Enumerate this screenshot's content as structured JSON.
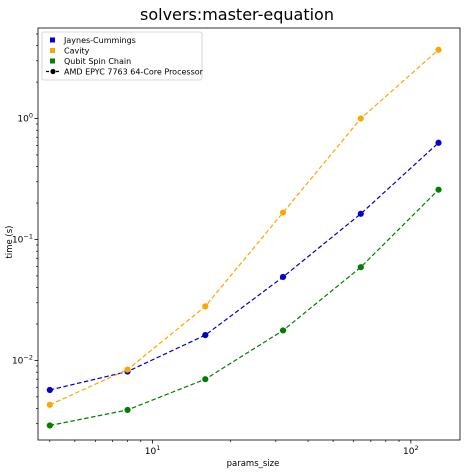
{
  "chart_data": {
    "type": "line",
    "title": "solvers:master-equation",
    "xlabel": "params_size",
    "ylabel": "time (s)",
    "x_scale": "log",
    "y_scale": "log",
    "xlim": [
      3.6,
      155
    ],
    "ylim": [
      0.0022,
      5.6
    ],
    "grid": false,
    "legend_position": "top-left",
    "x_ticks": [
      {
        "value": 10,
        "base": "10",
        "exp": "1"
      },
      {
        "value": 100,
        "base": "10",
        "exp": "2"
      }
    ],
    "y_ticks": [
      {
        "value": 0.01,
        "base": "10",
        "exp": "−2"
      },
      {
        "value": 0.1,
        "base": "10",
        "exp": "−1"
      },
      {
        "value": 1,
        "base": "10",
        "exp": "0"
      }
    ],
    "x": [
      4,
      8,
      16,
      32,
      64,
      128
    ],
    "series": [
      {
        "name": "Jaynes-Cummings",
        "color": "#0000cc",
        "values": [
          0.0057,
          0.0081,
          0.0162,
          0.049,
          0.163,
          0.63
        ]
      },
      {
        "name": "Cavity",
        "color": "#ffa500",
        "values": [
          0.0043,
          0.0084,
          0.028,
          0.167,
          1.0,
          3.7
        ]
      },
      {
        "name": "Qubit Spin Chain",
        "color": "#007f00",
        "values": [
          0.0029,
          0.0039,
          0.007,
          0.0177,
          0.059,
          0.258
        ]
      }
    ],
    "legend": {
      "entries": [
        "Jaynes-Cummings",
        "Cavity",
        "Qubit Spin Chain"
      ],
      "style_entry": "AMD EPYC 7763 64-Core Processor"
    }
  }
}
